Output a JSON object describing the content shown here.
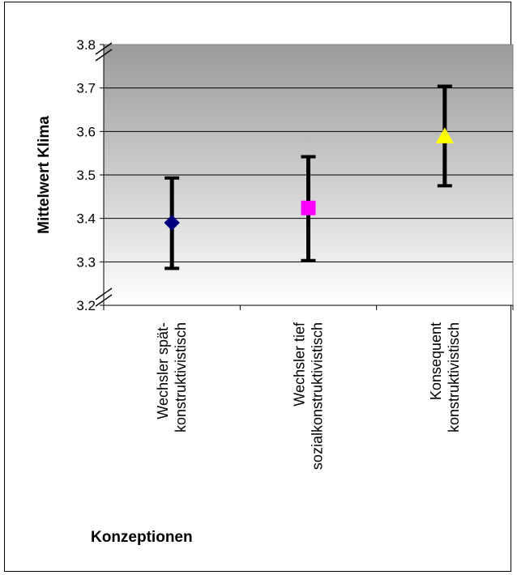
{
  "chart_data": {
    "type": "scatter",
    "title": "",
    "xlabel": "Konzeptionen",
    "ylabel": "Mittelwert Klima",
    "ylim": [
      3.2,
      3.8
    ],
    "yticks": [
      "3.2",
      "3.3",
      "3.4",
      "3.5",
      "3.6",
      "3.7",
      "3.8"
    ],
    "axis_break": true,
    "grid": true,
    "categories": [
      [
        "Wechsler spät-",
        "konstruktivistisch"
      ],
      [
        "Wechsler tief",
        "sozialkonstruktivistisch"
      ],
      [
        "Konsequent",
        "konstruktivistisch"
      ]
    ],
    "points": [
      {
        "mean": 3.39,
        "lower": 3.285,
        "upper": 3.493,
        "marker": "diamond",
        "color": "#000080"
      },
      {
        "mean": 3.424,
        "lower": 3.303,
        "upper": 3.542,
        "marker": "square",
        "color": "#ff00ff"
      },
      {
        "mean": 3.589,
        "lower": 3.475,
        "upper": 3.704,
        "marker": "triangle",
        "color": "#ffff00"
      }
    ],
    "plot_background": {
      "top": "#9a9a9a",
      "bottom": "#ffffff"
    }
  }
}
